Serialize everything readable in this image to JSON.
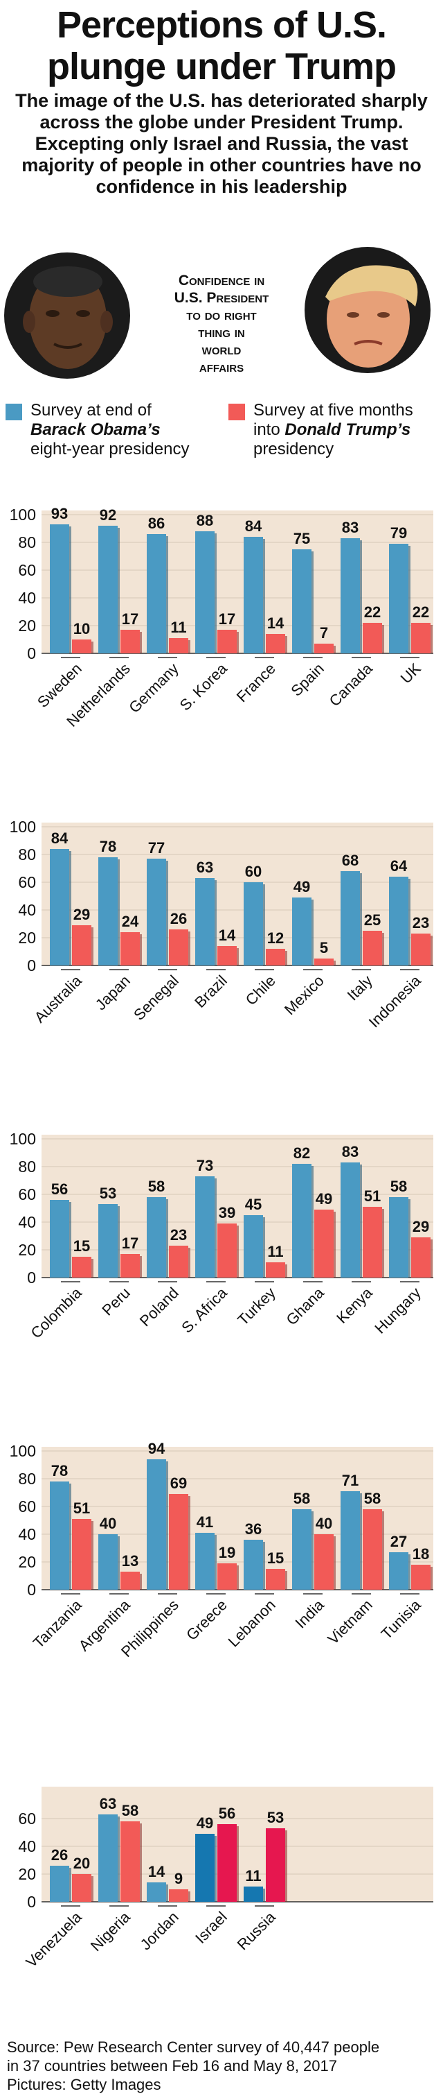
{
  "header": {
    "title_line1": "Perceptions of U.S.",
    "title_line2": "plunge under Trump",
    "subtitle": "The image of the U.S. has deteriorated sharply across the globe under President Trump. Excepting only Israel and Russia, the vast majority of people in other countries have no confidence in his leadership"
  },
  "center_label": {
    "line1": "Confidence in",
    "line2": "U.S. President",
    "line3": "to do right",
    "line4": "thing in",
    "line5": "world",
    "line6": "affairs"
  },
  "legend": {
    "obama_line1": "Survey at end of",
    "obama_name": "Barack Obama’s",
    "obama_line3": "eight-year presidency",
    "trump_line1": "Survey at five months",
    "trump_prefix": "into",
    "trump_name": "Donald Trump’s",
    "trump_line3": "presidency"
  },
  "colors": {
    "obama": "#4a9ac3",
    "trump": "#f25a57",
    "obama_highlight": "#1577b0",
    "trump_highlight": "#e6174f",
    "panel_bg": "#f2e4d5"
  },
  "chart_data": [
    {
      "type": "bar",
      "title": "Confidence in U.S. President to do right thing in world affairs",
      "ylim": [
        0,
        100
      ],
      "yticks": [
        0,
        20,
        40,
        60,
        80,
        100
      ],
      "categories": [
        "Sweden",
        "Netherlands",
        "Germany",
        "S. Korea",
        "France",
        "Spain",
        "Canada",
        "UK"
      ],
      "series": [
        {
          "name": "Obama",
          "values": [
            93,
            92,
            86,
            88,
            84,
            75,
            83,
            79
          ]
        },
        {
          "name": "Trump",
          "values": [
            10,
            17,
            11,
            17,
            14,
            7,
            22,
            22
          ]
        }
      ]
    },
    {
      "type": "bar",
      "ylim": [
        0,
        100
      ],
      "yticks": [
        0,
        20,
        40,
        60,
        80,
        100
      ],
      "categories": [
        "Australia",
        "Japan",
        "Senegal",
        "Brazil",
        "Chile",
        "Mexico",
        "Italy",
        "Indonesia"
      ],
      "series": [
        {
          "name": "Obama",
          "values": [
            84,
            78,
            77,
            63,
            60,
            49,
            68,
            64
          ]
        },
        {
          "name": "Trump",
          "values": [
            29,
            24,
            26,
            14,
            12,
            5,
            25,
            23
          ]
        }
      ]
    },
    {
      "type": "bar",
      "ylim": [
        0,
        100
      ],
      "yticks": [
        0,
        20,
        40,
        60,
        80,
        100
      ],
      "categories": [
        "Colombia",
        "Peru",
        "Poland",
        "S. Africa",
        "Turkey",
        "Ghana",
        "Kenya",
        "Hungary"
      ],
      "series": [
        {
          "name": "Obama",
          "values": [
            56,
            53,
            58,
            73,
            45,
            82,
            83,
            58
          ]
        },
        {
          "name": "Trump",
          "values": [
            15,
            17,
            23,
            39,
            11,
            49,
            51,
            29
          ]
        }
      ]
    },
    {
      "type": "bar",
      "ylim": [
        0,
        100
      ],
      "yticks": [
        0,
        20,
        40,
        60,
        80,
        100
      ],
      "categories": [
        "Tanzania",
        "Argentina",
        "Philippines",
        "Greece",
        "Lebanon",
        "India",
        "Vietnam",
        "Tunisia"
      ],
      "series": [
        {
          "name": "Obama",
          "values": [
            78,
            40,
            94,
            41,
            36,
            58,
            71,
            27
          ]
        },
        {
          "name": "Trump",
          "values": [
            51,
            13,
            69,
            19,
            15,
            40,
            58,
            18
          ]
        }
      ]
    },
    {
      "type": "bar",
      "ylim": [
        0,
        80
      ],
      "yticks": [
        0,
        20,
        40,
        60
      ],
      "categories": [
        "Venezuela",
        "Nigeria",
        "Jordan",
        "Israel",
        "Russia"
      ],
      "highlight": [
        "Israel",
        "Russia"
      ],
      "series": [
        {
          "name": "Obama",
          "values": [
            26,
            63,
            14,
            49,
            11
          ]
        },
        {
          "name": "Trump",
          "values": [
            20,
            58,
            9,
            56,
            53
          ]
        }
      ]
    }
  ],
  "source": {
    "line1": "Source: Pew Research Center survey of 40,447 people",
    "line2": "in 37 countries between Feb 16 and May 8, 2017",
    "line3": "Pictures: Getty Images"
  }
}
